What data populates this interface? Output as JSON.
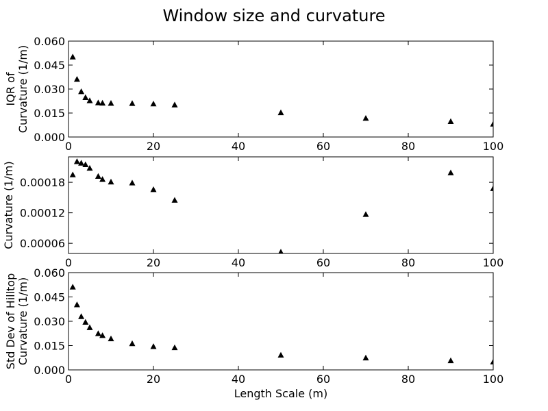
{
  "chart_data": {
    "type": "scatter",
    "title": "Window size and curvature",
    "xlabel": "Length Scale (m)",
    "x_ticks": [
      "0",
      "20",
      "40",
      "60",
      "80",
      "100"
    ],
    "marker_color": "#000000",
    "marker": "triangle",
    "panels": [
      {
        "name": "iqr",
        "ylabel_lines": [
          "IQR of",
          "Curvature (1/m)"
        ],
        "xlim": [
          0,
          100
        ],
        "ylim": [
          0.0,
          0.06
        ],
        "y_ticks": [
          "0.000",
          "0.015",
          "0.030",
          "0.045",
          "0.060"
        ],
        "x": [
          1,
          2,
          3,
          4,
          5,
          7,
          8,
          10,
          15,
          20,
          25,
          50,
          70,
          90,
          100
        ],
        "y": [
          0.0502,
          0.0362,
          0.0285,
          0.0248,
          0.0228,
          0.0215,
          0.0213,
          0.0212,
          0.0211,
          0.0208,
          0.0202,
          0.0153,
          0.0118,
          0.0098,
          0.0082
        ]
      },
      {
        "name": "median",
        "ylabel_lines": [
          "Curvature (1/m)"
        ],
        "xlim": [
          0,
          100
        ],
        "ylim": [
          4e-05,
          0.00023
        ],
        "y_ticks": [
          "0.00006",
          "0.00012",
          "0.00018"
        ],
        "x": [
          1,
          2,
          3,
          4,
          5,
          7,
          8,
          10,
          15,
          20,
          25,
          50,
          70,
          90,
          100
        ],
        "y": [
          0.000195,
          0.000221,
          0.000218,
          0.000215,
          0.000208,
          0.000192,
          0.000186,
          0.000181,
          0.000179,
          0.000166,
          0.000145,
          4.3e-05,
          0.000117,
          0.000199,
          0.000168
        ]
      },
      {
        "name": "stddev",
        "ylabel_lines": [
          "Std Dev of Hilltop",
          "Curvature (1/m)"
        ],
        "xlim": [
          0,
          100
        ],
        "ylim": [
          0.0,
          0.06
        ],
        "y_ticks": [
          "0.000",
          "0.015",
          "0.030",
          "0.045",
          "0.060"
        ],
        "x": [
          1,
          2,
          3,
          4,
          5,
          7,
          8,
          10,
          15,
          20,
          25,
          50,
          70,
          90,
          100
        ],
        "y": [
          0.0512,
          0.0403,
          0.033,
          0.0295,
          0.0262,
          0.0225,
          0.0213,
          0.0193,
          0.0163,
          0.0145,
          0.0138,
          0.0092,
          0.0075,
          0.0058,
          0.005
        ]
      }
    ]
  }
}
